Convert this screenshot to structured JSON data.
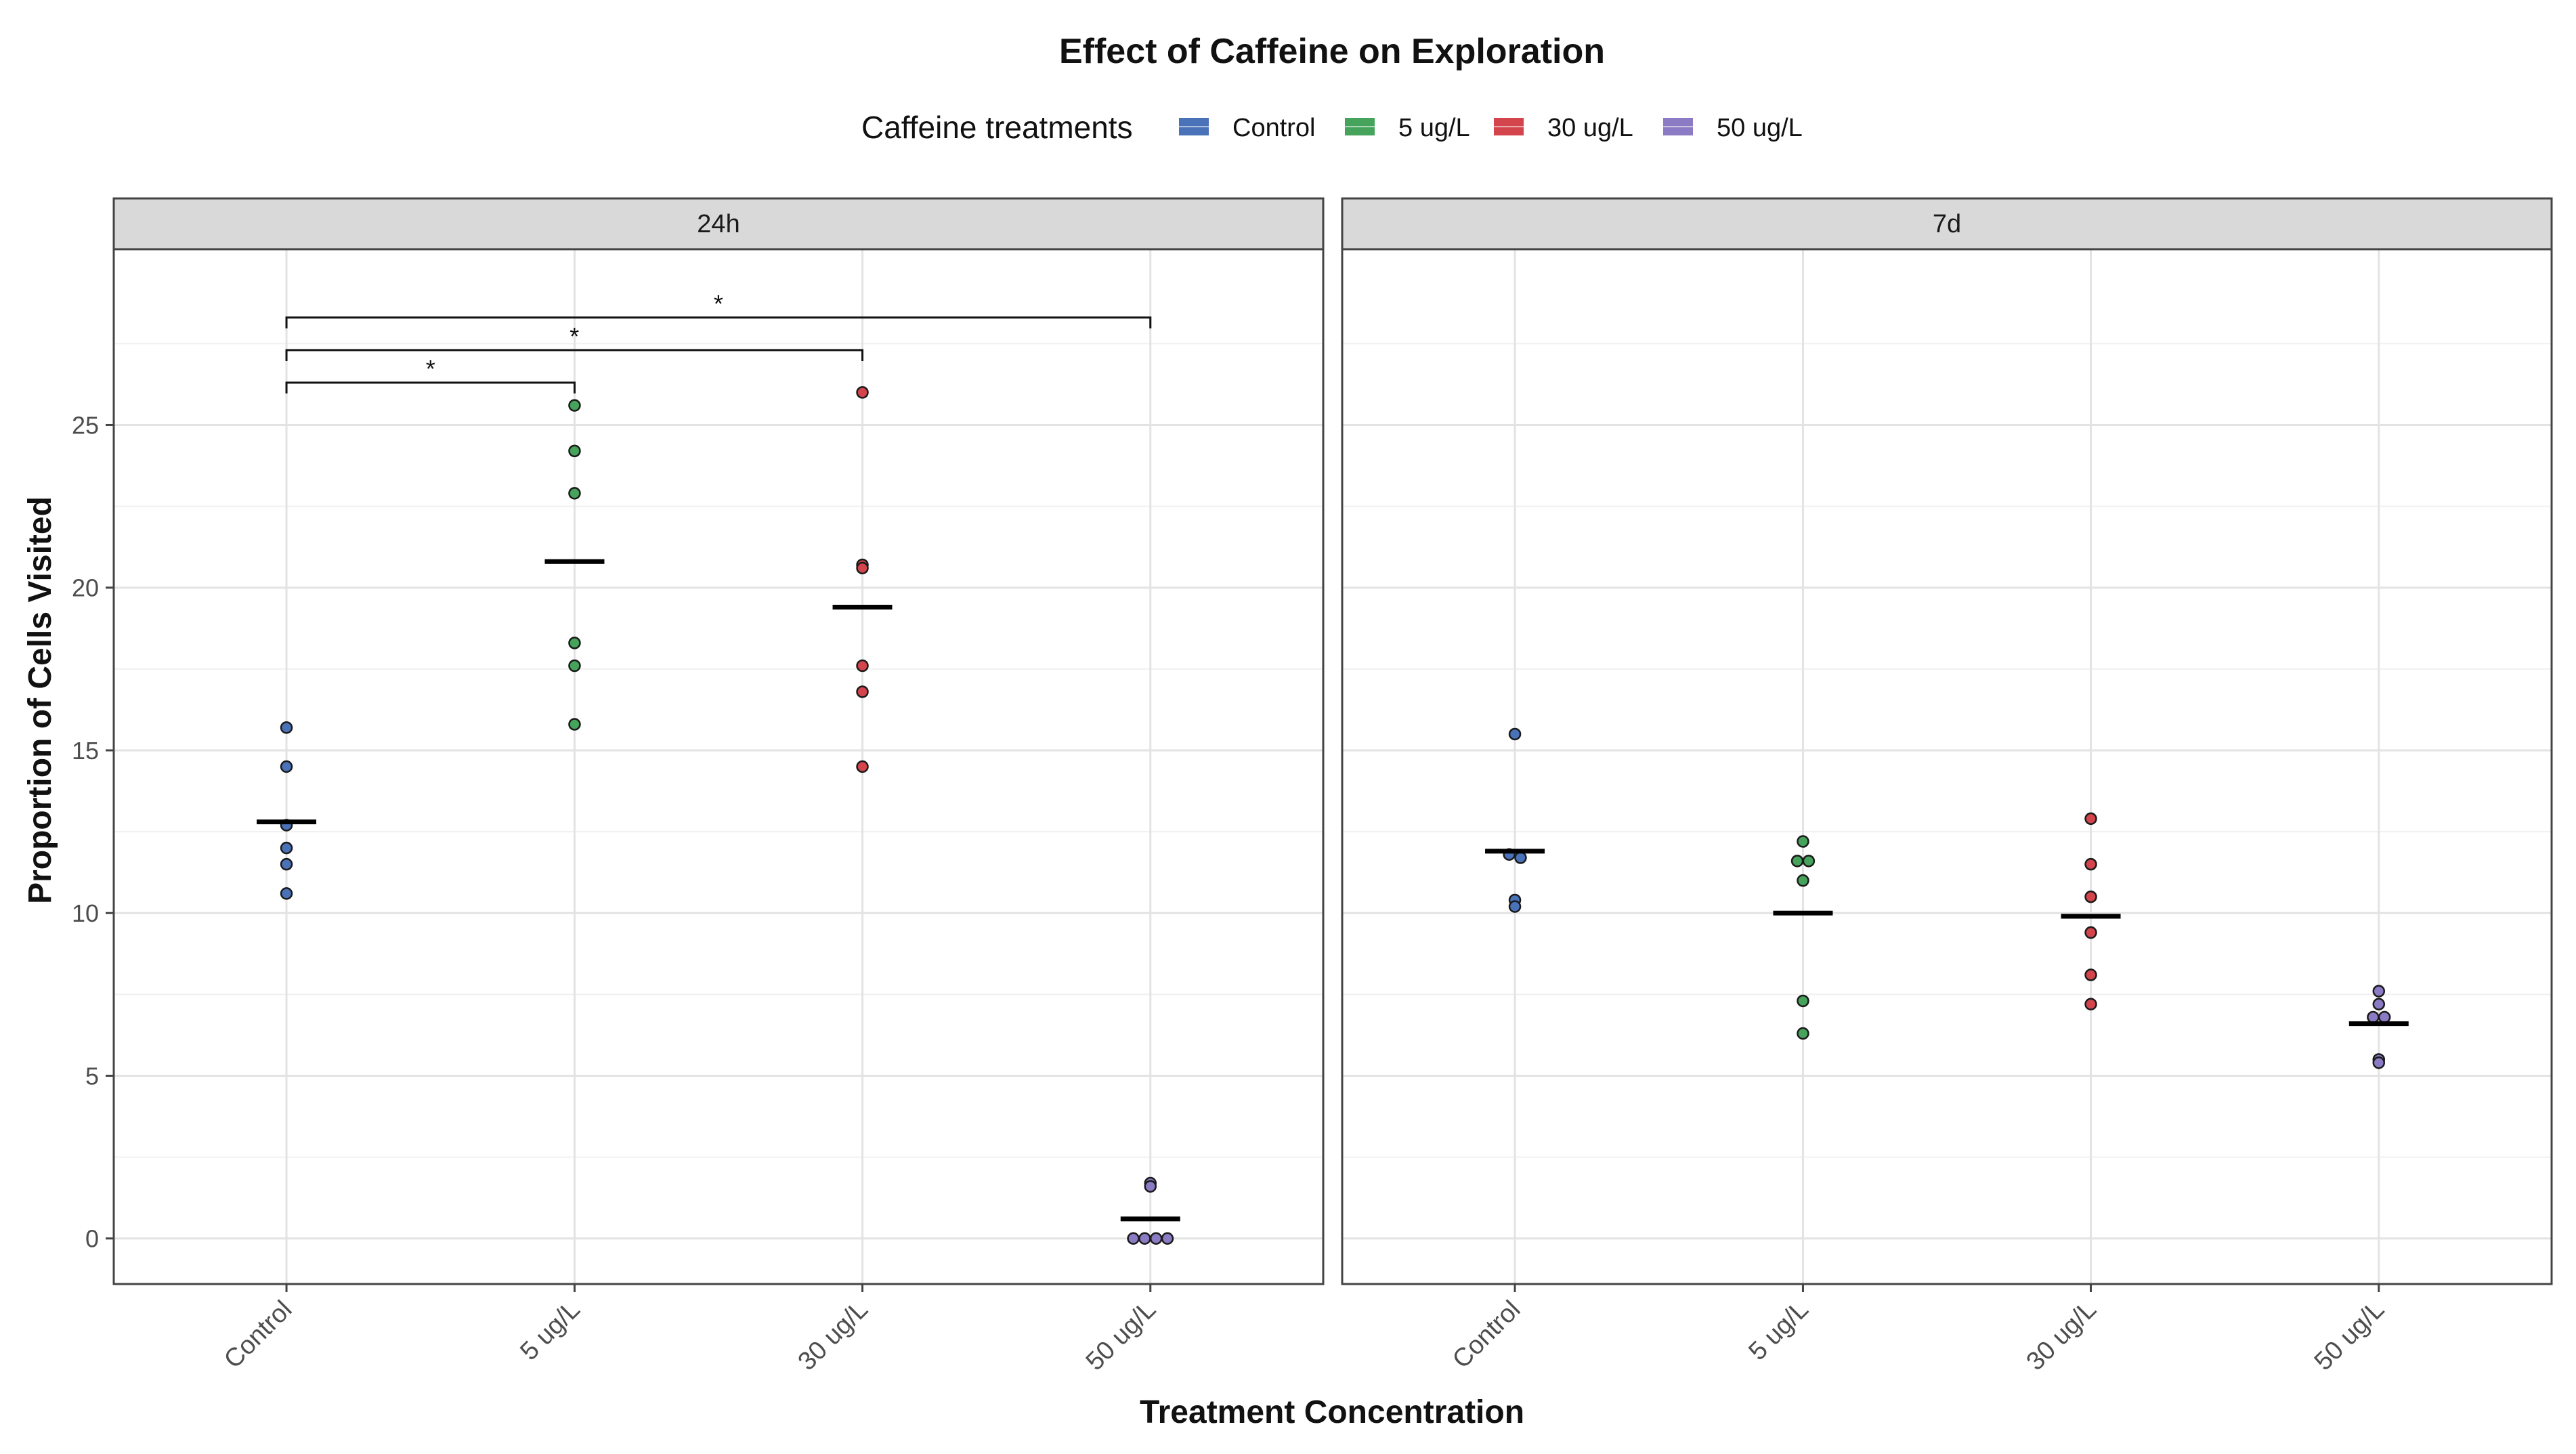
{
  "chart_data": {
    "type": "scatter",
    "subtype": "faceted dot plot with mean lines",
    "title": "Effect of Caffeine on Exploration",
    "xlabel": "Treatment Concentration",
    "ylabel": "Proportion of Cells Visited",
    "legend": {
      "title": "Caffeine treatments",
      "placement": "top",
      "entries": [
        {
          "name": "Control",
          "color": "#4a72b8"
        },
        {
          "name": "5 ug/L",
          "color": "#46a35c"
        },
        {
          "name": "30 ug/L",
          "color": "#d3444c"
        },
        {
          "name": "50 ug/L",
          "color": "#8b7bc4"
        }
      ]
    },
    "categories": [
      "Control",
      "5 ug/L",
      "30 ug/L",
      "50 ug/L"
    ],
    "ylim": [
      -1.4,
      30.4
    ],
    "yticks": [
      0,
      5,
      10,
      15,
      20,
      25
    ],
    "grid": true,
    "facets": [
      {
        "label": "24h",
        "groups": [
          {
            "category": "Control",
            "points": [
              15.7,
              14.5,
              12.7,
              12.0,
              11.5,
              10.6
            ],
            "mean": 12.8
          },
          {
            "category": "5 ug/L",
            "points": [
              25.6,
              24.2,
              22.9,
              18.3,
              17.6,
              15.8
            ],
            "mean": 20.8
          },
          {
            "category": "30 ug/L",
            "points": [
              26.0,
              20.7,
              20.6,
              17.6,
              16.8,
              14.5
            ],
            "mean": 19.4
          },
          {
            "category": "50 ug/L",
            "points": [
              1.7,
              1.6,
              0.0,
              0.0,
              0.0,
              0.0
            ],
            "mean": 0.6
          }
        ],
        "significance": [
          {
            "from": "Control",
            "to": "5 ug/L",
            "label": "*",
            "y": 26.3
          },
          {
            "from": "Control",
            "to": "30 ug/L",
            "label": "*",
            "y": 27.3
          },
          {
            "from": "Control",
            "to": "50 ug/L",
            "label": "*",
            "y": 28.3
          }
        ]
      },
      {
        "label": "7d",
        "groups": [
          {
            "category": "Control",
            "points": [
              15.5,
              11.8,
              11.7,
              10.4,
              10.2
            ],
            "mean": 11.9
          },
          {
            "category": "5 ug/L",
            "points": [
              12.2,
              11.6,
              11.6,
              11.0,
              7.3,
              6.3
            ],
            "mean": 10.0
          },
          {
            "category": "30 ug/L",
            "points": [
              12.9,
              11.5,
              10.5,
              9.4,
              8.1,
              7.2
            ],
            "mean": 9.9
          },
          {
            "category": "50 ug/L",
            "points": [
              7.6,
              7.2,
              6.8,
              6.8,
              5.5,
              5.4
            ],
            "mean": 6.6
          }
        ],
        "significance": []
      }
    ]
  }
}
